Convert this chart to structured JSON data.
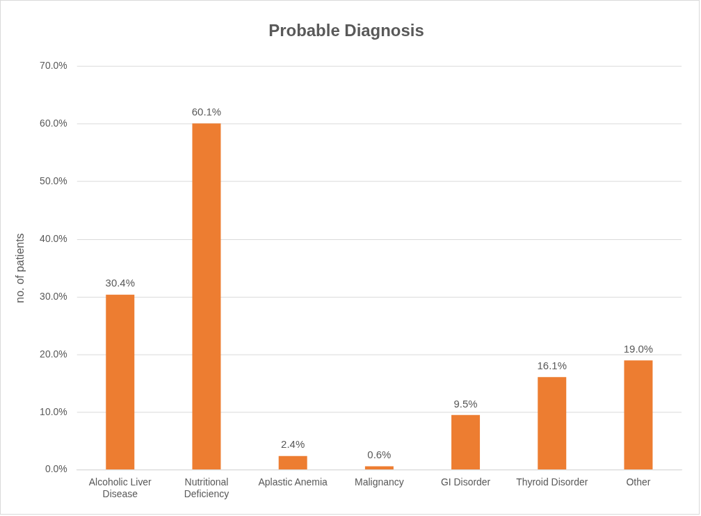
{
  "chart_data": {
    "type": "bar",
    "title": "Probable Diagnosis",
    "ylabel": "no. of patients",
    "categories": [
      "Alcoholic Liver Disease",
      "Nutritional Deficiency",
      "Aplastic Anemia",
      "Malignancy",
      "GI Disorder",
      "Thyroid Disorder",
      "Other"
    ],
    "values": [
      30.4,
      60.1,
      2.4,
      0.6,
      9.5,
      16.1,
      19.0
    ],
    "value_labels": [
      "30.4%",
      "60.1%",
      "2.4%",
      "0.6%",
      "9.5%",
      "16.1%",
      "19.0%"
    ],
    "color": "#ed7d31",
    "ylim": [
      0,
      70
    ],
    "yticks": [
      {
        "value": 0,
        "label": "0.0%"
      },
      {
        "value": 10,
        "label": "10.0%"
      },
      {
        "value": 20,
        "label": "20.0%"
      },
      {
        "value": 30,
        "label": "30.0%"
      },
      {
        "value": 40,
        "label": "40.0%"
      },
      {
        "value": 50,
        "label": "50.0%"
      },
      {
        "value": 60,
        "label": "60.0%"
      },
      {
        "value": 70,
        "label": "70.0%"
      }
    ],
    "grid": "y",
    "legend": false
  }
}
